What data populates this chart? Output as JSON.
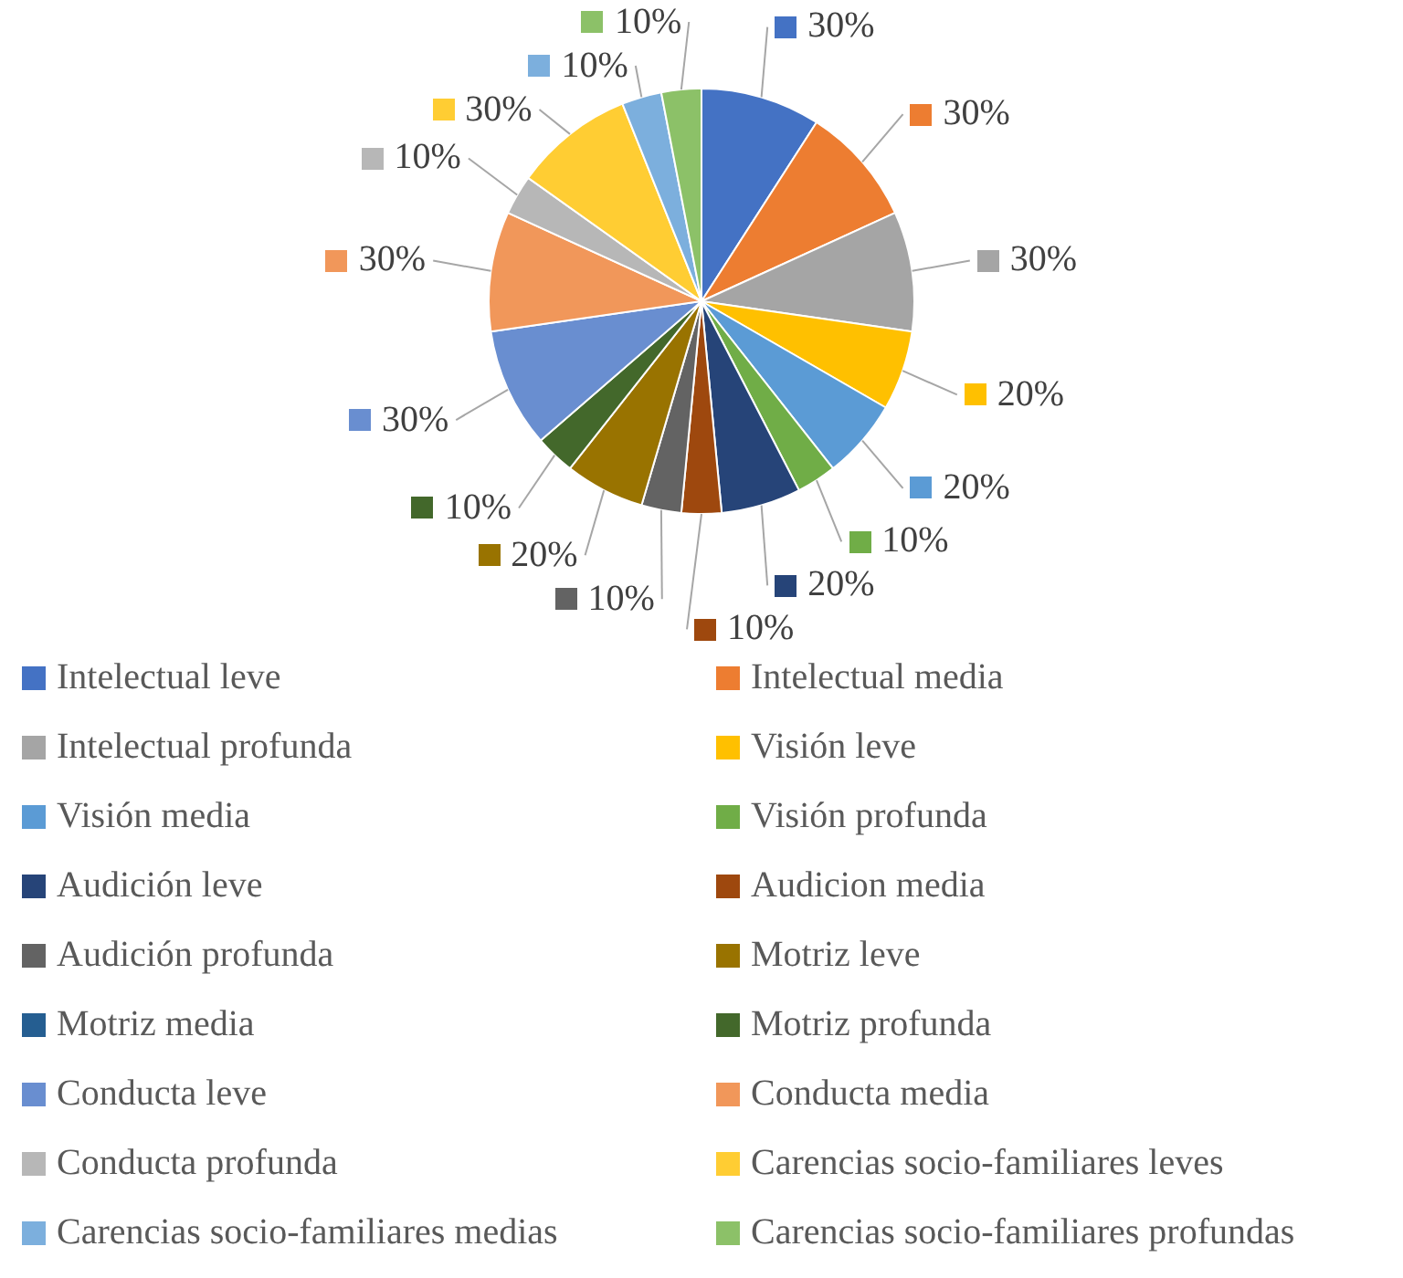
{
  "chart_data": {
    "type": "pie",
    "categories": [
      "Intelectual leve",
      "Intelectual media",
      "Intelectual profunda",
      "Visión leve",
      "Visión media",
      "Visión profunda",
      "Audición leve",
      "Audicion media",
      "Audición profunda",
      "Motriz leve",
      "Motriz media",
      "Motriz profunda",
      "Conducta leve",
      "Conducta media",
      "Conducta profunda",
      "Carencias socio-familiares leves",
      "Carencias socio-familiares medias",
      "Carencias socio-familiares profundas"
    ],
    "values": [
      30,
      30,
      30,
      20,
      20,
      10,
      20,
      10,
      10,
      20,
      0,
      10,
      30,
      30,
      10,
      30,
      10,
      10
    ],
    "value_labels": [
      "30%",
      "30%",
      "30%",
      "20%",
      "20%",
      "10%",
      "20%",
      "10%",
      "10%",
      "20%",
      null,
      "10%",
      "30%",
      "30%",
      "10%",
      "30%",
      "10%",
      "10%"
    ],
    "colors": [
      "#4472c4",
      "#ed7d31",
      "#a5a5a5",
      "#ffc000",
      "#5b9bd5",
      "#70ad47",
      "#264478",
      "#9e480e",
      "#636363",
      "#997300",
      "#255e91",
      "#43682b",
      "#698ed0",
      "#f1975a",
      "#b7b7b7",
      "#ffcd33",
      "#7cafdd",
      "#8cc168"
    ],
    "legend": "bottom"
  }
}
